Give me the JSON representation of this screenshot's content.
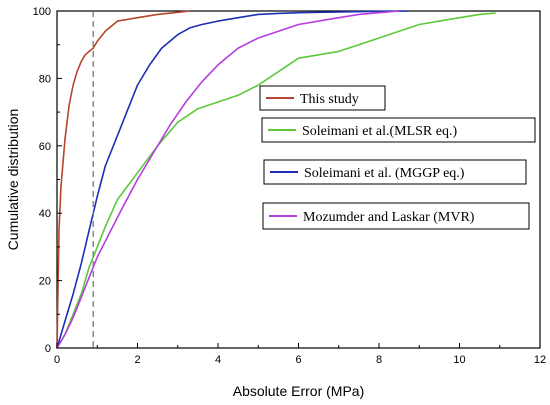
{
  "chart_data": {
    "type": "line",
    "title": "",
    "xlabel": "Absolute Error (MPa)",
    "ylabel": "Cumulative distribution",
    "xlim": [
      0,
      12
    ],
    "ylim": [
      0,
      100
    ],
    "xticks": [
      0,
      2,
      4,
      6,
      8,
      10,
      12
    ],
    "yticks": [
      0,
      20,
      40,
      60,
      80,
      100
    ],
    "grid": false,
    "reference_line": {
      "x": 0.9,
      "style": "dashed",
      "color": "#777777"
    },
    "legend_placement": "right, stacked",
    "series": [
      {
        "name": "This study",
        "color": "#b5452c",
        "x": [
          0,
          0.05,
          0.1,
          0.2,
          0.3,
          0.4,
          0.5,
          0.6,
          0.7,
          0.8,
          0.9,
          1.0,
          1.2,
          1.5,
          2.0,
          2.5,
          3.0,
          3.3
        ],
        "y": [
          0,
          35,
          48,
          62,
          72,
          78,
          82,
          85,
          87,
          88,
          89,
          91,
          94,
          97,
          98,
          99,
          99.6,
          100
        ]
      },
      {
        "name": "Soleimani et al.(MLSR eq.)",
        "color": "#5cc83a",
        "x": [
          0,
          0.2,
          0.4,
          0.6,
          0.8,
          1.0,
          1.2,
          1.5,
          2.0,
          2.5,
          3.0,
          3.5,
          4.0,
          4.5,
          5.0,
          5.5,
          6.0,
          6.5,
          7.0,
          7.5,
          8.0,
          8.5,
          9.0,
          9.5,
          10.0,
          10.5,
          10.9
        ],
        "y": [
          0,
          4,
          10,
          16,
          24,
          30,
          36,
          44,
          52,
          60,
          67,
          71,
          73,
          75,
          78,
          82,
          86,
          87,
          88,
          90,
          92,
          94,
          96,
          97,
          98,
          99,
          99.4
        ]
      },
      {
        "name": "Soleimani et al. (MGGP eq.)",
        "color": "#1d2fb3",
        "x": [
          0,
          0.2,
          0.4,
          0.6,
          0.8,
          1.0,
          1.2,
          1.5,
          1.8,
          2.0,
          2.3,
          2.6,
          3.0,
          3.3,
          3.6,
          4.0,
          4.5,
          5.0,
          5.5,
          6.0,
          7.0,
          8.0,
          8.7
        ],
        "y": [
          0,
          8,
          16,
          25,
          35,
          45,
          54,
          63,
          72,
          78,
          84,
          89,
          93,
          95,
          96,
          97,
          98,
          99,
          99.3,
          99.5,
          99.7,
          99.9,
          100
        ]
      },
      {
        "name": "Mozumder and Laskar (MVR)",
        "color": "#b63ee0",
        "x": [
          0,
          0.2,
          0.4,
          0.6,
          0.8,
          1.0,
          1.3,
          1.6,
          2.0,
          2.4,
          2.8,
          3.2,
          3.6,
          4.0,
          4.5,
          5.0,
          5.5,
          6.0,
          6.5,
          7.0,
          7.5,
          8.0,
          8.5
        ],
        "y": [
          0,
          4,
          9,
          15,
          21,
          27,
          34,
          41,
          50,
          58,
          66,
          73,
          79,
          84,
          89,
          92,
          94,
          96,
          97,
          98,
          99,
          99.5,
          100
        ]
      }
    ]
  }
}
